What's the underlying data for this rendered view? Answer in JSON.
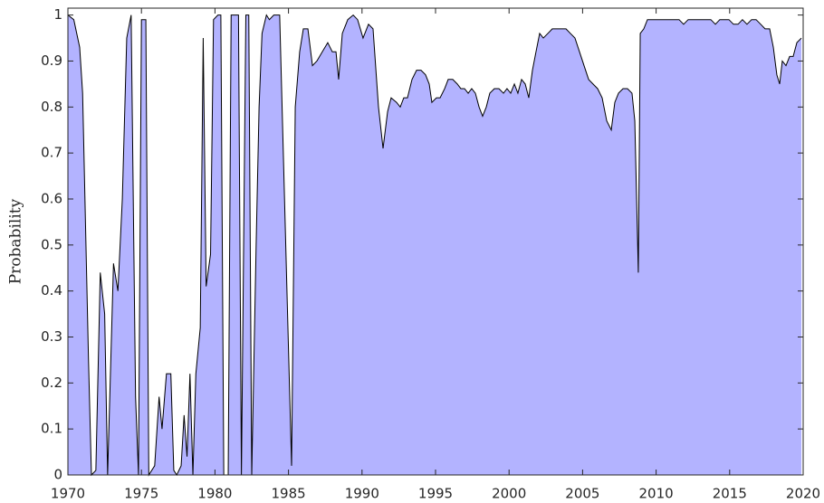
{
  "chart_data": {
    "type": "area",
    "y_label": "Probability",
    "color": "#b3b3ff",
    "line_color": "#000000",
    "x": [
      1970.0,
      1970.4,
      1970.8,
      1971.0,
      1971.4,
      1971.6,
      1971.9,
      1972.2,
      1972.5,
      1972.7,
      1973.1,
      1973.4,
      1973.7,
      1974.0,
      1974.3,
      1974.6,
      1974.8,
      1975.0,
      1975.3,
      1975.5,
      1975.9,
      1976.2,
      1976.4,
      1976.7,
      1977.0,
      1977.2,
      1977.4,
      1977.7,
      1977.9,
      1978.1,
      1978.3,
      1978.5,
      1978.7,
      1979.0,
      1979.2,
      1979.4,
      1979.7,
      1979.9,
      1980.2,
      1980.4,
      1980.6,
      1980.9,
      1981.1,
      1981.6,
      1981.8,
      1982.1,
      1982.3,
      1982.5,
      1982.8,
      1983.0,
      1983.2,
      1983.5,
      1983.7,
      1984.0,
      1984.4,
      1985.21,
      1985.46,
      1985.76,
      1986.01,
      1986.32,
      1986.63,
      1986.93,
      1987.3,
      1987.67,
      1987.98,
      1988.23,
      1988.41,
      1988.66,
      1989.03,
      1989.4,
      1989.7,
      1990.07,
      1990.44,
      1990.75,
      1991.12,
      1991.43,
      1991.74,
      1991.98,
      1992.35,
      1992.6,
      1992.84,
      1993.09,
      1993.4,
      1993.71,
      1994.01,
      1994.32,
      1994.57,
      1994.75,
      1995.06,
      1995.31,
      1995.62,
      1995.86,
      1996.17,
      1996.48,
      1996.72,
      1996.97,
      1997.22,
      1997.46,
      1997.71,
      1997.96,
      1998.2,
      1998.45,
      1998.69,
      1999.0,
      1999.31,
      1999.62,
      1999.86,
      2000.11,
      2000.36,
      2000.6,
      2000.85,
      2001.1,
      2001.34,
      2001.59,
      2001.83,
      2002.08,
      2002.33,
      2002.64,
      2002.94,
      2003.25,
      2003.56,
      2003.87,
      2004.17,
      2004.48,
      2004.79,
      2005.1,
      2005.41,
      2005.71,
      2006.02,
      2006.33,
      2006.64,
      2006.95,
      2007.19,
      2007.44,
      2007.75,
      2008.05,
      2008.36,
      2008.55,
      2008.79,
      2008.92,
      2009.16,
      2009.41,
      2009.72,
      2010.02,
      2010.33,
      2010.64,
      2010.95,
      2011.26,
      2011.56,
      2011.87,
      2012.18,
      2012.49,
      2012.8,
      2013.1,
      2013.41,
      2013.72,
      2014.03,
      2014.33,
      2014.64,
      2014.95,
      2015.26,
      2015.57,
      2015.87,
      2016.18,
      2016.49,
      2016.8,
      2017.11,
      2017.41,
      2017.72,
      2017.97,
      2018.21,
      2018.4,
      2018.58,
      2018.83,
      2019.08,
      2019.32,
      2019.57,
      2019.88
    ],
    "values": [
      1.0,
      0.99,
      0.93,
      0.83,
      0.25,
      0.0,
      0.01,
      0.44,
      0.35,
      0.0,
      0.46,
      0.4,
      0.6,
      0.95,
      1.0,
      0.17,
      0.0,
      0.99,
      0.99,
      0.0,
      0.02,
      0.17,
      0.1,
      0.22,
      0.22,
      0.01,
      0.0,
      0.02,
      0.13,
      0.04,
      0.22,
      0.0,
      0.22,
      0.32,
      0.95,
      0.41,
      0.48,
      0.99,
      1.0,
      1.0,
      0.0,
      0.0,
      1.0,
      1.0,
      0.0,
      1.0,
      1.0,
      0.0,
      0.5,
      0.8,
      0.96,
      1.0,
      0.99,
      1.0,
      1.0,
      0.02,
      0.8,
      0.92,
      0.97,
      0.97,
      0.89,
      0.9,
      0.92,
      0.94,
      0.92,
      0.92,
      0.86,
      0.96,
      0.99,
      1.0,
      0.99,
      0.95,
      0.98,
      0.97,
      0.8,
      0.71,
      0.79,
      0.82,
      0.81,
      0.8,
      0.82,
      0.82,
      0.86,
      0.88,
      0.88,
      0.87,
      0.85,
      0.81,
      0.82,
      0.82,
      0.84,
      0.86,
      0.86,
      0.85,
      0.84,
      0.84,
      0.83,
      0.84,
      0.83,
      0.8,
      0.78,
      0.8,
      0.83,
      0.84,
      0.84,
      0.83,
      0.84,
      0.83,
      0.85,
      0.83,
      0.86,
      0.85,
      0.82,
      0.88,
      0.92,
      0.96,
      0.95,
      0.96,
      0.97,
      0.97,
      0.97,
      0.97,
      0.96,
      0.95,
      0.92,
      0.89,
      0.86,
      0.85,
      0.84,
      0.82,
      0.77,
      0.75,
      0.81,
      0.83,
      0.84,
      0.84,
      0.83,
      0.77,
      0.44,
      0.96,
      0.97,
      0.99,
      0.99,
      0.99,
      0.99,
      0.99,
      0.99,
      0.99,
      0.99,
      0.98,
      0.99,
      0.99,
      0.99,
      0.99,
      0.99,
      0.99,
      0.98,
      0.99,
      0.99,
      0.99,
      0.98,
      0.98,
      0.99,
      0.98,
      0.99,
      0.99,
      0.98,
      0.97,
      0.97,
      0.93,
      0.87,
      0.85,
      0.9,
      0.89,
      0.91,
      0.91,
      0.94,
      0.95
    ],
    "xlim": [
      1970,
      2020
    ],
    "xticks": [
      1970,
      1975,
      1980,
      1985,
      1990,
      1995,
      2000,
      2005,
      2010,
      2015,
      2020
    ],
    "ylim": [
      0,
      1.015
    ],
    "yticks": [
      0,
      0.1,
      0.2,
      0.3,
      0.4,
      0.5,
      0.6,
      0.7,
      0.8,
      0.9,
      1
    ]
  }
}
